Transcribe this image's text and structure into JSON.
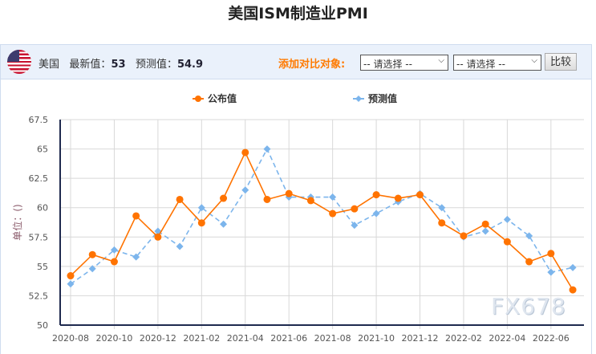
{
  "title": "美国ISM制造业PMI",
  "header": {
    "country": "美国",
    "latest_label": "最新值：",
    "latest_value": "53",
    "forecast_label": "预测值：",
    "forecast_value": "54.9",
    "compare_label": "添加对比对象:",
    "select1": "-- 请选择 --",
    "select2": "-- 请选择 --",
    "compare_button": "比较",
    "flag_icon": "us-flag-icon"
  },
  "watermark": "FX678",
  "chart_data": {
    "type": "line",
    "title": "",
    "ylabel": "单位：()",
    "xlabel": "",
    "ylim": [
      50,
      67.5
    ],
    "yticks": [
      "50",
      "52.5",
      "55",
      "57.5",
      "60",
      "62.5",
      "65",
      "67.5"
    ],
    "grid": true,
    "legend_placement": "top",
    "categories": [
      "2020-08",
      "2020-09",
      "2020-10",
      "2020-11",
      "2020-12",
      "2021-01",
      "2021-02",
      "2021-03",
      "2021-04",
      "2021-05",
      "2021-06",
      "2021-07",
      "2021-08",
      "2021-09",
      "2021-10",
      "2021-11",
      "2021-12",
      "2022-01",
      "2022-02",
      "2022-03",
      "2022-04",
      "2022-05",
      "2022-06",
      "2022-07"
    ],
    "xtick_labels": [
      "2020-08",
      "2020-10",
      "2020-12",
      "2021-02",
      "2021-04",
      "2021-06",
      "2021-08",
      "2021-10",
      "2021-12",
      "2022-02",
      "2022-04",
      "2022-06"
    ],
    "series": [
      {
        "name": "公布值",
        "color": "#ff7300",
        "style": "solid",
        "marker": "circle",
        "values": [
          54.2,
          56.0,
          55.4,
          59.3,
          57.5,
          60.7,
          58.7,
          60.8,
          64.7,
          60.7,
          61.2,
          60.6,
          59.5,
          59.9,
          61.1,
          60.8,
          61.1,
          58.7,
          57.6,
          58.6,
          57.1,
          55.4,
          56.1,
          53.0
        ]
      },
      {
        "name": "预测值",
        "color": "#7cb5ec",
        "style": "dashed",
        "marker": "diamond",
        "values": [
          53.5,
          54.8,
          56.4,
          55.8,
          58.0,
          56.7,
          60.0,
          58.6,
          61.5,
          65.0,
          60.9,
          60.9,
          60.9,
          58.5,
          59.5,
          60.5,
          61.2,
          60.0,
          57.5,
          58.0,
          59.0,
          57.6,
          54.5,
          54.9
        ]
      }
    ]
  }
}
